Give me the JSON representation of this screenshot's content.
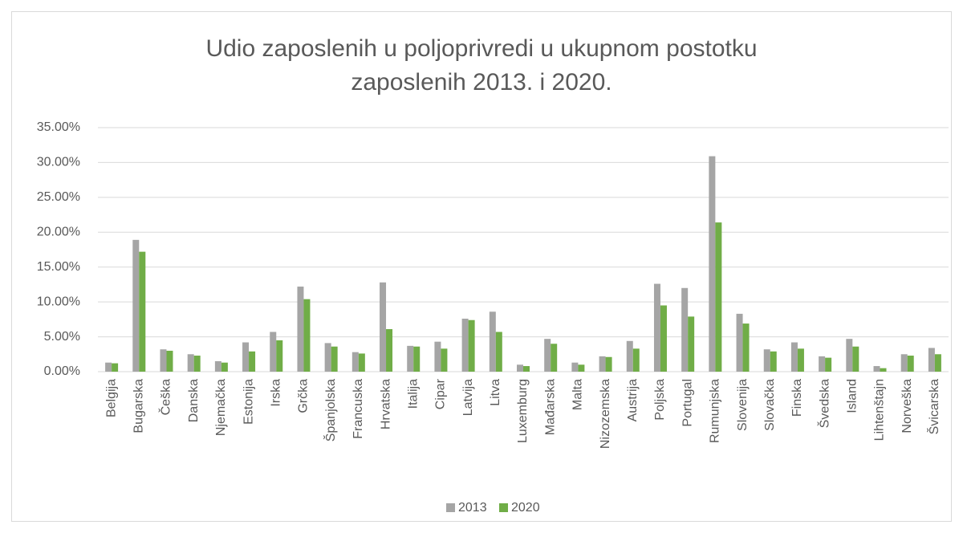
{
  "chart_data": {
    "type": "bar",
    "title": "Udio zaposlenih u poljoprivredi u ukupnom postotku zaposlenih 2013. i 2020.",
    "categories": [
      "Belgija",
      "Bugarska",
      "Češka",
      "Danska",
      "Njemačka",
      "Estonija",
      "Irska",
      "Grčka",
      "Španjolska",
      "Francuska",
      "Hrvatska",
      "Italija",
      "Cipar",
      "Latvija",
      "Litva",
      "Luxemburg",
      "Mađarska",
      "Malta",
      "Nizozemska",
      "Austrija",
      "Poljska",
      "Portugal",
      "Rumunjska",
      "Slovenija",
      "Slovačka",
      "Finska",
      "Švedska",
      "Island",
      "Lihtenštajn",
      "Norveška",
      "Švicarska"
    ],
    "series": [
      {
        "name": "2013",
        "color": "#a5a5a5",
        "values": [
          1.3,
          18.9,
          3.2,
          2.5,
          1.5,
          4.2,
          5.7,
          12.2,
          4.1,
          2.8,
          12.8,
          3.7,
          4.3,
          7.6,
          8.6,
          1.0,
          4.7,
          1.3,
          2.2,
          4.4,
          12.6,
          12.0,
          30.9,
          8.3,
          3.2,
          4.2,
          2.2,
          4.7,
          0.8,
          2.5,
          3.4
        ]
      },
      {
        "name": "2020",
        "color": "#70ad47",
        "values": [
          1.2,
          17.2,
          3.0,
          2.3,
          1.3,
          2.9,
          4.5,
          10.4,
          3.6,
          2.6,
          6.1,
          3.6,
          3.3,
          7.4,
          5.7,
          0.8,
          4.0,
          1.0,
          2.1,
          3.3,
          9.5,
          7.9,
          21.4,
          6.9,
          2.9,
          3.3,
          2.0,
          3.6,
          0.5,
          2.3,
          2.5
        ]
      }
    ],
    "ylim": [
      0,
      35
    ],
    "yticks": [
      {
        "value": 0,
        "label": "0.00%"
      },
      {
        "value": 5,
        "label": "5.00%"
      },
      {
        "value": 10,
        "label": "10.00%"
      },
      {
        "value": 15,
        "label": "15.00%"
      },
      {
        "value": 20,
        "label": "20.00%"
      },
      {
        "value": 25,
        "label": "25.00%"
      },
      {
        "value": 30,
        "label": "30.00%"
      },
      {
        "value": 35,
        "label": "35.00%"
      }
    ],
    "grid": true,
    "legend": "bottom"
  }
}
